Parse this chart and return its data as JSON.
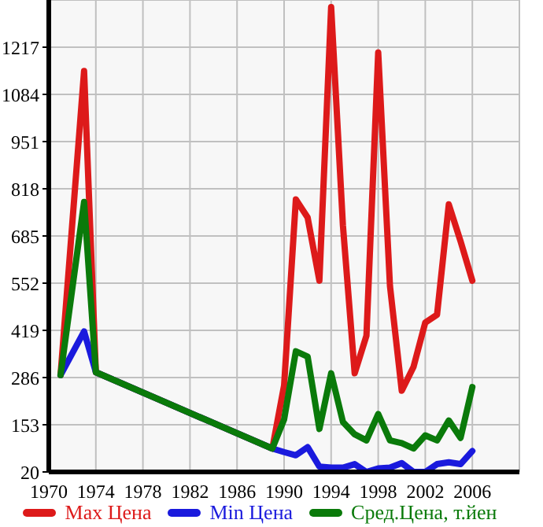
{
  "chart_data": {
    "type": "line",
    "x": [
      1971,
      1973,
      1974,
      1989,
      1990,
      1991,
      1992,
      1993,
      1994,
      1995,
      1996,
      1997,
      1998,
      1999,
      2000,
      2001,
      2002,
      2003,
      2004,
      2005,
      2006
    ],
    "series": [
      {
        "name": "Max Цена",
        "color": "#dd1a1a",
        "values": [
          293,
          1150,
          301,
          86,
          264,
          788,
          737,
          559,
          1330,
          715,
          298,
          404,
          1202,
          544,
          249,
          316,
          441,
          463,
          774,
          670,
          559
        ]
      },
      {
        "name": "Min Цена",
        "color": "#1a1add",
        "values": [
          293,
          416,
          301,
          86,
          76,
          67,
          90,
          35,
          32,
          32,
          42,
          20,
          30,
          32,
          45,
          20,
          20,
          42,
          47,
          42,
          79
        ]
      },
      {
        "name": "Сред.Цена, т.йен",
        "color": "#0a7a0a",
        "values": [
          293,
          781,
          301,
          86,
          168,
          360,
          345,
          141,
          298,
          161,
          126,
          109,
          183,
          109,
          101,
          86,
          123,
          109,
          165,
          116,
          259
        ]
      }
    ],
    "xlim": [
      1970,
      2010
    ],
    "xticks": [
      1970,
      1974,
      1978,
      1982,
      1986,
      1990,
      1994,
      1998,
      2002,
      2006
    ],
    "ylim": [
      20,
      1350
    ],
    "yticks": [
      20,
      153,
      286,
      419,
      552,
      685,
      818,
      951,
      1084,
      1217
    ],
    "grid": true,
    "legend": "bottom",
    "marker": "none",
    "line_style": "solid"
  }
}
